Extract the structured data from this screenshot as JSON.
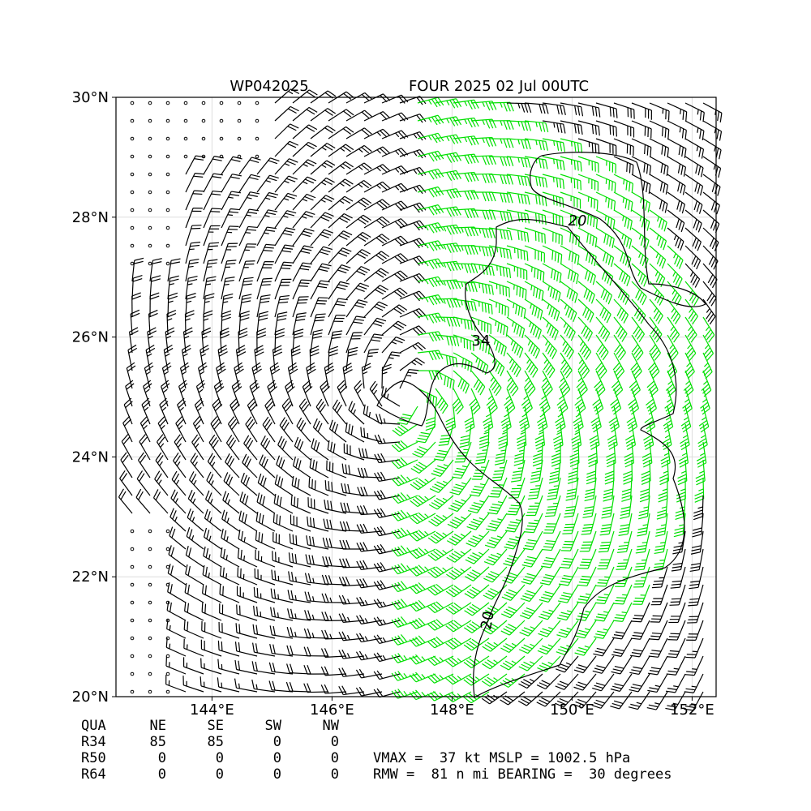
{
  "chart_data": {
    "type": "wind-barb-map",
    "title_left": "WP042025",
    "title_right": "FOUR 2025 02 Jul 00UTC",
    "xlim": [
      142.4,
      152.4
    ],
    "ylim": [
      20,
      30
    ],
    "xticks": [
      {
        "value": 144,
        "label": "144°E"
      },
      {
        "value": 146,
        "label": "146°E"
      },
      {
        "value": 148,
        "label": "148°E"
      },
      {
        "value": 150,
        "label": "150°E"
      },
      {
        "value": 152,
        "label": "152°E"
      }
    ],
    "yticks": [
      {
        "value": 20,
        "label": "20°N"
      },
      {
        "value": 22,
        "label": "22°N"
      },
      {
        "value": 24,
        "label": "24°N"
      },
      {
        "value": 26,
        "label": "26°N"
      },
      {
        "value": 28,
        "label": "28°N"
      },
      {
        "value": 30,
        "label": "30°N"
      }
    ],
    "grid": true,
    "contour_labels": [
      "20",
      "34",
      "20"
    ],
    "radii_table": {
      "header": [
        "QUA",
        "NE",
        "SE",
        "SW",
        "NW"
      ],
      "rows": [
        [
          "R34",
          85,
          85,
          0,
          0
        ],
        [
          "R50",
          0,
          0,
          0,
          0
        ],
        [
          "R64",
          0,
          0,
          0,
          0
        ]
      ]
    },
    "info_lines": [
      "VMAX =  37 kt MSLP = 1002.5 hPa",
      "RMW =  81 n mi BEARING =  30 degrees"
    ]
  }
}
